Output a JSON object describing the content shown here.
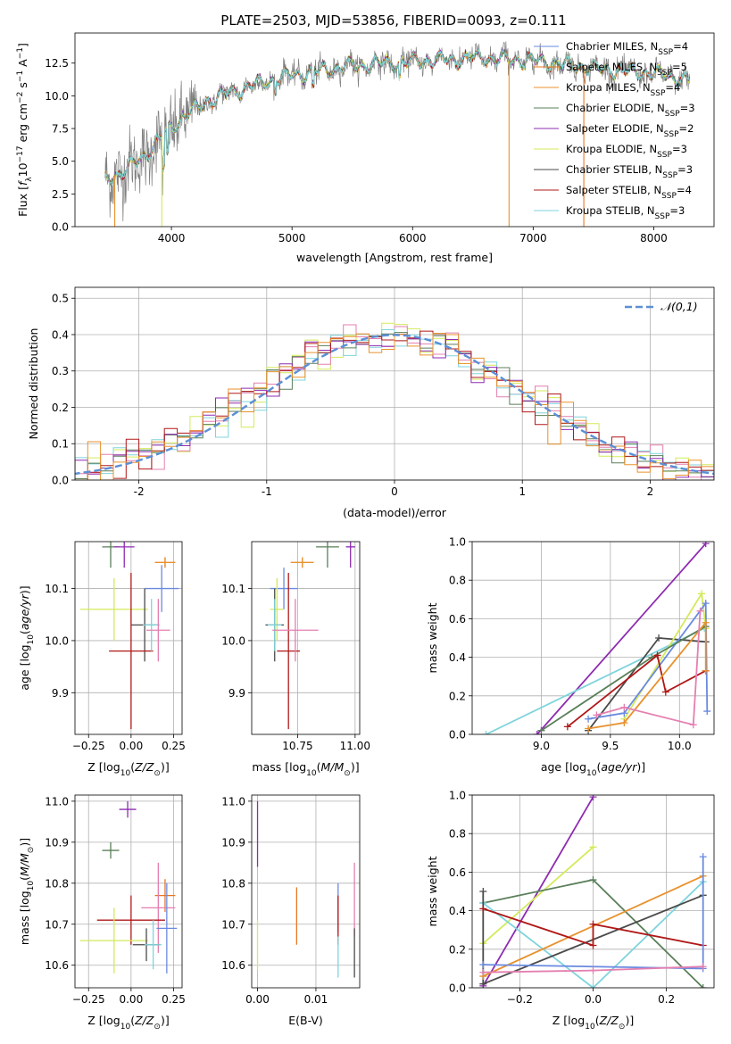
{
  "figure_title": "PLATE=2503, MJD=53856, FIBERID=0093, z=0.111",
  "colors": {
    "chabrier_miles": "#6a8ae0",
    "salpeter_miles": "#e87722",
    "kroupa_miles": "#e8922e",
    "chabrier_elodie": "#5a7f5a",
    "salpeter_elodie": "#8e2bb0",
    "kroupa_elodie": "#d4ea5a",
    "chabrier_stelib": "#4a4a4a",
    "salpeter_stelib": "#b01818",
    "kroupa_stelib": "#7fd4dc",
    "pink": "#e47fb0",
    "data_gray": "#808080",
    "gaussian": "#5b8fd6"
  },
  "chart_data": [
    {
      "id": "spectrum",
      "type": "line",
      "title": "",
      "xlabel": "wavelength [Angstrom, rest frame]",
      "ylabel": "Flux [f_λ 10^-17 erg cm^-2 s^-1 A^-1]",
      "xlim": [
        3200,
        8500
      ],
      "ylim": [
        0,
        14.8
      ],
      "xticks": [
        4000,
        5000,
        6000,
        7000,
        8000
      ],
      "yticks": [
        0.0,
        2.5,
        5.0,
        7.5,
        10.0,
        12.5
      ],
      "legend_position": "upper right",
      "legend": [
        "Chabrier MILES, N_SSP=4",
        "Salpeter MILES, N_SSP=5",
        "Kroupa MILES, N_SSP=4",
        "Chabrier ELODIE, N_SSP=3",
        "Salpeter ELODIE, N_SSP=2",
        "Kroupa ELODIE, N_SSP=3",
        "Chabrier STELIB, N_SSP=3",
        "Salpeter STELIB, N_SSP=4",
        "Kroupa STELIB, N_SSP=3"
      ],
      "continuum": {
        "x": [
          3450,
          3600,
          3800,
          3950,
          4100,
          4300,
          4600,
          5000,
          5500,
          6000,
          6500,
          7000,
          7500,
          8000,
          8300
        ],
        "y": [
          3.6,
          4.2,
          5.6,
          7.2,
          8.4,
          9.6,
          10.6,
          11.6,
          12.3,
          12.6,
          12.9,
          12.7,
          12.1,
          11.7,
          11.2
        ]
      }
    },
    {
      "id": "residual_histogram",
      "type": "step",
      "xlabel": "(data-model)/error",
      "ylabel": "Normed distribution",
      "xlim": [
        -2.5,
        2.5
      ],
      "ylim": [
        0,
        0.53
      ],
      "xticks": [
        -2,
        -1,
        0,
        1,
        2
      ],
      "yticks": [
        0.0,
        0.1,
        0.2,
        0.3,
        0.4,
        0.5
      ],
      "legend": [
        "𝒩(0,1)"
      ],
      "legend_position": "upper right",
      "bin_width": 0.1
    },
    {
      "id": "age_vs_Z",
      "type": "errorbar",
      "xlabel": "Z [log10(Z/Z⊙)]",
      "ylabel": "age [log10(age/yr)]",
      "xlim": [
        -0.33,
        0.3
      ],
      "ylim": [
        9.82,
        10.19
      ],
      "xticks": [
        -0.25,
        0.0,
        0.25
      ],
      "xticklabels": [
        "−0.25",
        "0.00",
        "0.25"
      ],
      "yticks": [
        9.9,
        10.0,
        10.1
      ],
      "yticklabels": [
        "9.9",
        "10.0",
        "10.1"
      ],
      "points": [
        {
          "model": "chabrier_miles",
          "x": 0.18,
          "xerr": 0.1,
          "y": 10.1,
          "yerr": 0.045
        },
        {
          "model": "salpeter_miles",
          "x": 0.2,
          "xerr": 0.06,
          "y": 10.15,
          "yerr": 0.01
        },
        {
          "model": "kroupa_miles",
          "x": 0.2,
          "xerr": 0.06,
          "y": 10.15,
          "yerr": 0.01
        },
        {
          "model": "chabrier_elodie",
          "x": -0.12,
          "xerr": 0.05,
          "y": 10.18,
          "yerr": 0.04
        },
        {
          "model": "salpeter_elodie",
          "x": -0.04,
          "xerr": 0.06,
          "y": 10.18,
          "yerr": 0.04
        },
        {
          "model": "kroupa_elodie",
          "x": -0.1,
          "xerr": 0.2,
          "y": 10.06,
          "yerr": 0.06
        },
        {
          "model": "chabrier_stelib",
          "x": 0.08,
          "xerr": 0.08,
          "y": 10.03,
          "yerr": 0.07
        },
        {
          "model": "salpeter_stelib",
          "x": 0.0,
          "xerr": 0.13,
          "y": 9.98,
          "yerr": 0.15
        },
        {
          "model": "kroupa_stelib",
          "x": 0.12,
          "xerr": 0.05,
          "y": 10.03,
          "yerr": 0.05
        },
        {
          "model": "pink",
          "x": 0.16,
          "xerr": 0.07,
          "y": 10.02,
          "yerr": 0.06
        }
      ]
    },
    {
      "id": "age_vs_mass",
      "type": "errorbar",
      "xlabel": "mass [log10(M/M⊙)]",
      "ylabel": "",
      "xlim": [
        10.55,
        11.02
      ],
      "ylim": [
        9.82,
        10.19
      ],
      "xticks": [
        10.75,
        11.0
      ],
      "xticklabels": [
        "10.75",
        "11.00"
      ],
      "yticks": [
        9.9,
        10.0,
        10.1
      ],
      "yticklabels": [
        "9.9",
        "10.0",
        "10.1"
      ],
      "points": [
        {
          "model": "chabrier_miles",
          "x": 10.69,
          "xerr": 0.06,
          "y": 10.1,
          "yerr": 0.04
        },
        {
          "model": "salpeter_miles",
          "x": 10.77,
          "xerr": 0.05,
          "y": 10.15,
          "yerr": 0.01
        },
        {
          "model": "kroupa_miles",
          "x": 10.77,
          "xerr": 0.05,
          "y": 10.15,
          "yerr": 0.01
        },
        {
          "model": "chabrier_elodie",
          "x": 10.88,
          "xerr": 0.05,
          "y": 10.18,
          "yerr": 0.04
        },
        {
          "model": "salpeter_elodie",
          "x": 10.98,
          "xerr": 0.02,
          "y": 10.18,
          "yerr": 0.04
        },
        {
          "model": "kroupa_elodie",
          "x": 10.66,
          "xerr": 0.03,
          "y": 10.06,
          "yerr": 0.06
        },
        {
          "model": "chabrier_stelib",
          "x": 10.65,
          "xerr": 0.04,
          "y": 10.03,
          "yerr": 0.07
        },
        {
          "model": "salpeter_stelib",
          "x": 10.71,
          "xerr": 0.05,
          "y": 9.98,
          "yerr": 0.15
        },
        {
          "model": "kroupa_stelib",
          "x": 10.65,
          "xerr": 0.03,
          "y": 10.03,
          "yerr": 0.05
        },
        {
          "model": "pink",
          "x": 10.74,
          "xerr": 0.1,
          "y": 10.02,
          "yerr": 0.06
        }
      ]
    },
    {
      "id": "massweight_vs_age",
      "type": "line",
      "xlabel": "age [log10(age/yr)]",
      "ylabel": "mass weight",
      "xlim": [
        8.5,
        10.25
      ],
      "ylim": [
        0,
        1.0
      ],
      "xticks": [
        9.0,
        9.5,
        10.0
      ],
      "xticklabels": [
        "9.0",
        "9.5",
        "10.0"
      ],
      "yticks": [
        0.0,
        0.2,
        0.4,
        0.6,
        0.8,
        1.0
      ],
      "yticklabels": [
        "0.0",
        "0.2",
        "0.4",
        "0.6",
        "0.8",
        "1.0"
      ],
      "series": [
        {
          "model": "salpeter_elodie",
          "x": [
            8.97,
            10.19
          ],
          "y": [
            0.0,
            0.99
          ]
        },
        {
          "model": "kroupa_stelib",
          "x": [
            8.6,
            10.18
          ],
          "y": [
            0.0,
            0.55
          ]
        },
        {
          "model": "chabrier_stelib",
          "x": [
            9.34,
            9.85,
            10.19
          ],
          "y": [
            0.02,
            0.5,
            0.48
          ]
        },
        {
          "model": "kroupa_elodie",
          "x": [
            9.6,
            10.16,
            10.19
          ],
          "y": [
            0.08,
            0.73,
            0.55
          ]
        },
        {
          "model": "chabrier_miles",
          "x": [
            9.34,
            9.6,
            10.19,
            10.2
          ],
          "y": [
            0.08,
            0.11,
            0.68,
            0.12
          ]
        },
        {
          "model": "chabrier_elodie",
          "x": [
            9.0,
            9.8,
            10.19
          ],
          "y": [
            0.02,
            0.4,
            0.56
          ]
        },
        {
          "model": "salpeter_stelib",
          "x": [
            9.19,
            9.84,
            9.9,
            10.19
          ],
          "y": [
            0.04,
            0.41,
            0.22,
            0.33
          ]
        },
        {
          "model": "kroupa_miles",
          "x": [
            9.34,
            9.6,
            10.19,
            10.19
          ],
          "y": [
            0.03,
            0.06,
            0.58,
            0.33
          ]
        },
        {
          "model": "pink",
          "x": [
            9.4,
            9.6,
            10.1,
            10.15
          ],
          "y": [
            0.1,
            0.14,
            0.05,
            0.64
          ]
        }
      ]
    },
    {
      "id": "mass_vs_Z",
      "type": "errorbar",
      "xlabel": "Z [log10(Z/Z⊙)]",
      "ylabel": "mass [log10(M/M⊙)]",
      "xlim": [
        -0.33,
        0.3
      ],
      "ylim": [
        10.545,
        11.015
      ],
      "xticks": [
        -0.25,
        0.0,
        0.25
      ],
      "xticklabels": [
        "−0.25",
        "0.00",
        "0.25"
      ],
      "yticks": [
        10.6,
        10.7,
        10.8,
        10.9,
        11.0
      ],
      "yticklabels": [
        "10.6",
        "10.7",
        "10.8",
        "10.9",
        "11.0"
      ],
      "points": [
        {
          "model": "salpeter_elodie",
          "x": -0.02,
          "xerr": 0.05,
          "y": 10.98,
          "yerr": 0.02
        },
        {
          "model": "chabrier_elodie",
          "x": -0.12,
          "xerr": 0.05,
          "y": 10.88,
          "yerr": 0.02
        },
        {
          "model": "salpeter_miles",
          "x": 0.2,
          "xerr": 0.06,
          "y": 10.77,
          "yerr": 0.04
        },
        {
          "model": "pink",
          "x": 0.16,
          "xerr": 0.1,
          "y": 10.74,
          "yerr": 0.11
        },
        {
          "model": "salpeter_stelib",
          "x": 0.0,
          "xerr": 0.2,
          "y": 10.71,
          "yerr": 0.06
        },
        {
          "model": "chabrier_miles",
          "x": 0.21,
          "xerr": 0.06,
          "y": 10.69,
          "yerr": 0.11
        },
        {
          "model": "kroupa_elodie",
          "x": -0.1,
          "xerr": 0.2,
          "y": 10.66,
          "yerr": 0.08
        },
        {
          "model": "chabrier_stelib",
          "x": 0.09,
          "xerr": 0.08,
          "y": 10.65,
          "yerr": 0.04
        },
        {
          "model": "kroupa_stelib",
          "x": 0.13,
          "xerr": 0.05,
          "y": 10.65,
          "yerr": 0.06
        }
      ]
    },
    {
      "id": "mass_vs_ebv",
      "type": "errorbar",
      "xlabel": "E(B-V)",
      "ylabel": "",
      "xlim": [
        -0.001,
        0.0175
      ],
      "ylim": [
        10.545,
        11.015
      ],
      "xticks": [
        0.0,
        0.01
      ],
      "xticklabels": [
        "0.00",
        "0.01"
      ],
      "yticks": [
        10.6,
        10.7,
        10.8,
        10.9,
        11.0
      ],
      "yticklabels": [
        "10.6",
        "10.7",
        "10.8",
        "10.9",
        "11.0"
      ],
      "points": [
        {
          "model": "salpeter_elodie",
          "x": 0.0,
          "y": 10.92,
          "yerr": 0.08
        },
        {
          "model": "kroupa_elodie",
          "x": 0.0,
          "y": 10.65,
          "yerr": 0.06
        },
        {
          "model": "salpeter_miles",
          "x": 0.0067,
          "y": 10.72,
          "yerr": 0.07
        },
        {
          "model": "chabrier_miles",
          "x": 0.0138,
          "y": 10.74,
          "yerr": 0.06
        },
        {
          "model": "salpeter_stelib",
          "x": 0.0138,
          "y": 10.71,
          "yerr": 0.06
        },
        {
          "model": "kroupa_stelib",
          "x": 0.0138,
          "y": 10.62,
          "yerr": 0.05
        },
        {
          "model": "pink",
          "x": 0.0166,
          "y": 10.76,
          "yerr": 0.09
        },
        {
          "model": "chabrier_stelib",
          "x": 0.0166,
          "y": 10.63,
          "yerr": 0.06
        }
      ]
    },
    {
      "id": "massweight_vs_Z",
      "type": "line",
      "xlabel": "Z [log10(Z/Z⊙)]",
      "ylabel": "mass weight",
      "xlim": [
        -0.33,
        0.33
      ],
      "ylim": [
        0,
        1.0
      ],
      "xticks": [
        -0.2,
        0.0,
        0.2
      ],
      "xticklabels": [
        "−0.2",
        "0.0",
        "0.2"
      ],
      "yticks": [
        0.0,
        0.2,
        0.4,
        0.6,
        0.8,
        1.0
      ],
      "yticklabels": [
        "0.0",
        "0.2",
        "0.4",
        "0.6",
        "0.8",
        "1.0"
      ],
      "series": [
        {
          "model": "salpeter_elodie",
          "x": [
            -0.3,
            0.0
          ],
          "y": [
            0.01,
            0.99
          ]
        },
        {
          "model": "kroupa_elodie",
          "x": [
            -0.3,
            0.0
          ],
          "y": [
            0.23,
            0.73
          ]
        },
        {
          "model": "chabrier_elodie",
          "x": [
            -0.3,
            0.0,
            0.3
          ],
          "y": [
            0.44,
            0.56,
            0.0
          ]
        },
        {
          "model": "kroupa_stelib",
          "x": [
            -0.3,
            0.0,
            0.3
          ],
          "y": [
            0.44,
            0.0,
            0.55
          ]
        },
        {
          "model": "chabrier_stelib",
          "x": [
            -0.3,
            -0.3,
            0.3
          ],
          "y": [
            0.5,
            0.02,
            0.48
          ]
        },
        {
          "model": "kroupa_miles",
          "x": [
            -0.3,
            0.3
          ],
          "y": [
            0.06,
            0.58
          ]
        },
        {
          "model": "salpeter_stelib",
          "x": [
            -0.3,
            0.0,
            0.0,
            0.3
          ],
          "y": [
            0.41,
            0.22,
            0.33,
            0.22
          ]
        },
        {
          "model": "chabrier_miles",
          "x": [
            -0.3,
            0.3,
            0.3
          ],
          "y": [
            0.12,
            0.1,
            0.68
          ]
        },
        {
          "model": "pink",
          "x": [
            -0.3,
            0.0,
            0.3
          ],
          "y": [
            0.08,
            0.09,
            0.11
          ]
        }
      ]
    }
  ]
}
